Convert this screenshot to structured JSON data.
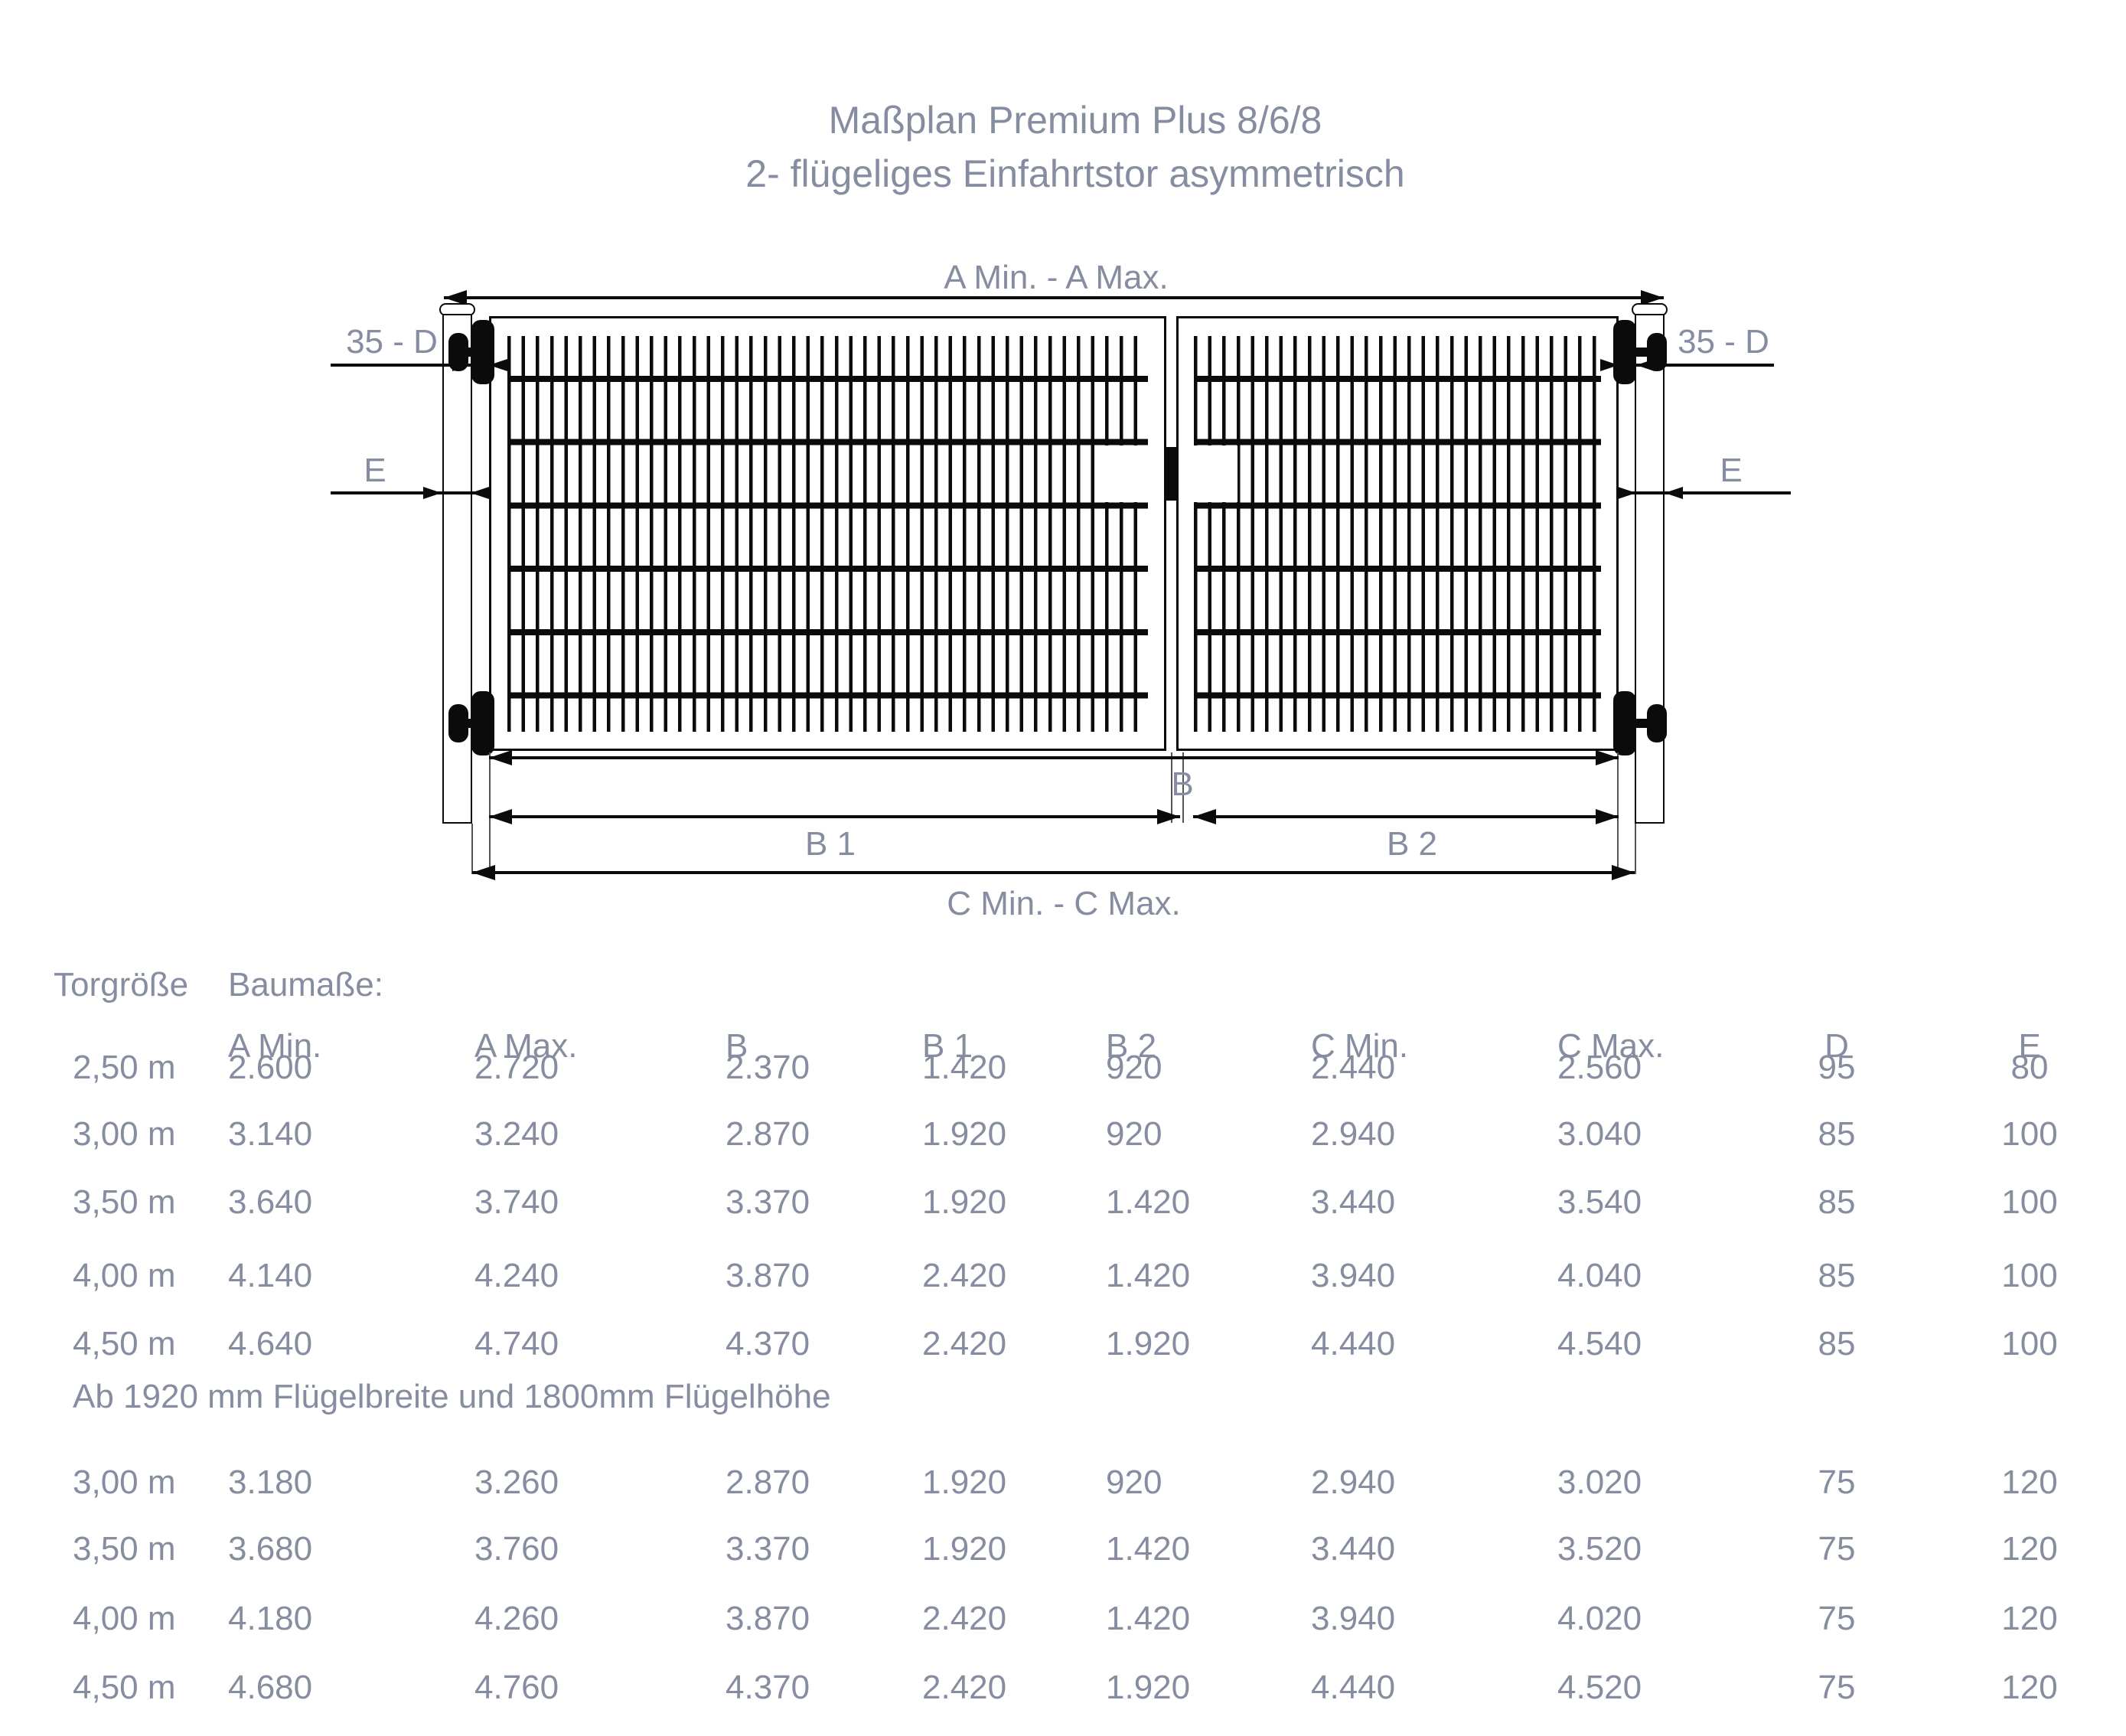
{
  "title": {
    "line1": "Maßplan Premium Plus 8/6/8",
    "line2": "2- flügeliges Einfahrtstor asymmetrisch"
  },
  "colors": {
    "text_gray_blue": "#878da0",
    "drawing_ink": "#0b0b0b"
  },
  "diagram": {
    "dim_a_label": "A Min. - A Max.",
    "dim_b_label": "B",
    "dim_b1_label": "B 1",
    "dim_b2_label": "B 2",
    "dim_c_label": "C Min. - C Max.",
    "hinge_dim_left": "35 - D",
    "hinge_dim_right": "35 - D",
    "post_dim_left": "E",
    "post_dim_right": "E"
  },
  "table": {
    "group_header": {
      "col0": "Torgröße",
      "col1": "Baumaße:"
    },
    "columns": [
      "A Min.",
      "A Max.",
      "B",
      "B 1",
      "B 2",
      "C Min.",
      "C Max.",
      "D",
      "E"
    ],
    "section1_rows": [
      {
        "size": "2,50 m",
        "values": [
          "2.600",
          "2.720",
          "2.370",
          "1.420",
          "920",
          "2.440",
          "2.560",
          "95",
          "80"
        ]
      },
      {
        "size": "3,00 m",
        "values": [
          "3.140",
          "3.240",
          "2.870",
          "1.920",
          "920",
          "2.940",
          "3.040",
          "85",
          "100"
        ]
      },
      {
        "size": "3,50 m",
        "values": [
          "3.640",
          "3.740",
          "3.370",
          "1.920",
          "1.420",
          "3.440",
          "3.540",
          "85",
          "100"
        ]
      },
      {
        "size": "4,00 m",
        "values": [
          "4.140",
          "4.240",
          "3.870",
          "2.420",
          "1.420",
          "3.940",
          "4.040",
          "85",
          "100"
        ]
      },
      {
        "size": "4,50 m",
        "values": [
          "4.640",
          "4.740",
          "4.370",
          "2.420",
          "1.920",
          "4.440",
          "4.540",
          "85",
          "100"
        ]
      }
    ],
    "section2_note": "Ab 1920 mm Flügelbreite und 1800mm Flügelhöhe",
    "section2_rows": [
      {
        "size": "3,00 m",
        "values": [
          "3.180",
          "3.260",
          "2.870",
          "1.920",
          "920",
          "2.940",
          "3.020",
          "75",
          "120"
        ]
      },
      {
        "size": "3,50 m",
        "values": [
          "3.680",
          "3.760",
          "3.370",
          "1.920",
          "1.420",
          "3.440",
          "3.520",
          "75",
          "120"
        ]
      },
      {
        "size": "4,00 m",
        "values": [
          "4.180",
          "4.260",
          "3.870",
          "2.420",
          "1.420",
          "3.940",
          "4.020",
          "75",
          "120"
        ]
      },
      {
        "size": "4,50 m",
        "values": [
          "4.680",
          "4.760",
          "4.370",
          "2.420",
          "1.920",
          "4.440",
          "4.520",
          "75",
          "120"
        ]
      }
    ]
  }
}
